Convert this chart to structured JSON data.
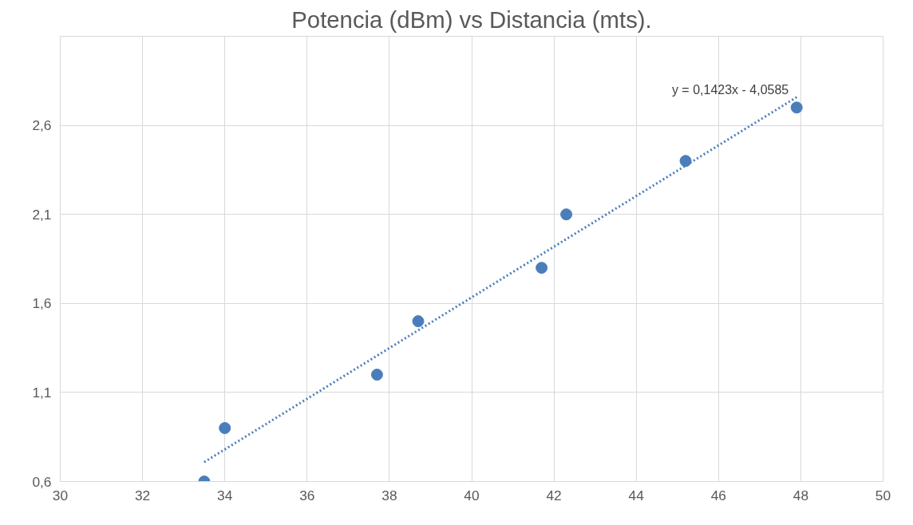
{
  "chart_data": {
    "type": "scatter",
    "title": "Potencia (dBm) vs Distancia (mts).",
    "x": [
      33.5,
      34.0,
      37.7,
      38.7,
      41.7,
      42.3,
      45.2,
      47.9
    ],
    "series": [
      {
        "color": "#4a7ebb",
        "marker": "circle",
        "values": [
          0.6,
          0.9,
          1.2,
          1.5,
          1.8,
          2.1,
          2.4,
          2.7
        ]
      },
      {
        "type": "line",
        "color": "#4a7ebb",
        "line_style": "dotted",
        "x": [
          33.5,
          47.9
        ],
        "values": [
          0.709,
          2.758
        ]
      }
    ],
    "xlim": [
      30,
      50
    ],
    "xticks": [
      30,
      32,
      34,
      36,
      38,
      40,
      42,
      44,
      46,
      48,
      50
    ],
    "ylim": [
      0.6,
      3.1
    ],
    "yticks": [
      {
        "value": 0.6,
        "label": "0,6"
      },
      {
        "value": 1.1,
        "label": "1,1"
      },
      {
        "value": 1.6,
        "label": "1,6"
      },
      {
        "value": 2.1,
        "label": "2,1"
      },
      {
        "value": 2.6,
        "label": "2,6"
      },
      {
        "value": 3.1,
        "label": null
      }
    ],
    "grid": true,
    "annotations": [
      {
        "text": "y = 0,1423x - 4,0585",
        "x": 47.9,
        "y": 2.76
      }
    ]
  }
}
